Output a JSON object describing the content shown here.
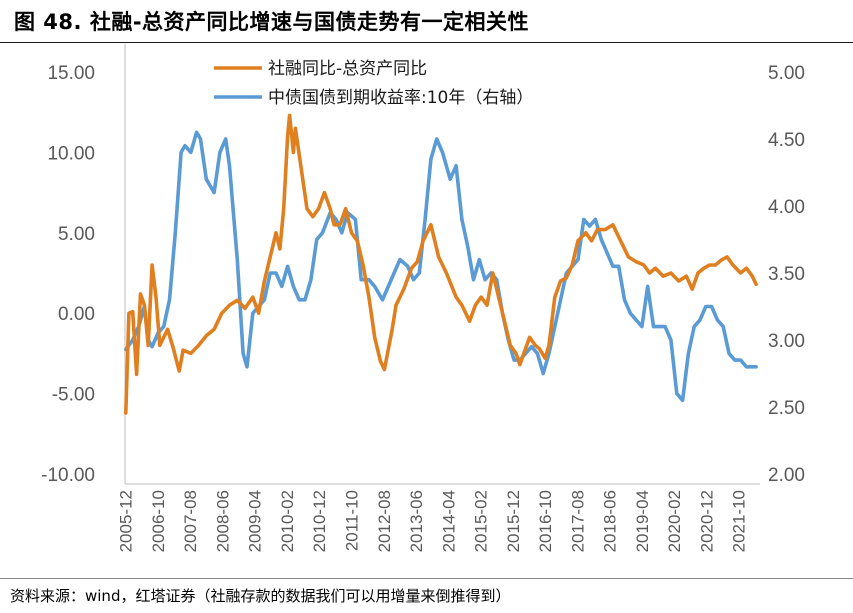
{
  "title": "图 48. 社融-总资产同比增速与国债走势有一定相关性",
  "source": "资料来源：wind，红塔证券（社融存款的数据我们可以用增量来倒推得到）",
  "colors": {
    "series_1": "#E07F1F",
    "series_2": "#5A9BD5"
  },
  "chart_data": {
    "type": "line",
    "x": [
      "2005-12",
      "2006-10",
      "2007-08",
      "2008-06",
      "2009-04",
      "2010-02",
      "2010-12",
      "2011-10",
      "2012-08",
      "2013-06",
      "2014-04",
      "2015-02",
      "2015-12",
      "2016-10",
      "2017-08",
      "2018-06",
      "2019-04",
      "2020-02",
      "2020-12",
      "2021-10"
    ],
    "x_range": [
      2005.9,
      2022.3
    ],
    "y_left": {
      "range": [
        -10,
        15
      ],
      "ticks": [
        "15.00",
        "10.00",
        "5.00",
        "0.00",
        "-5.00",
        "-10.00"
      ]
    },
    "y_right": {
      "range": [
        2,
        5
      ],
      "ticks": [
        "5.00",
        "4.50",
        "4.00",
        "3.50",
        "3.00",
        "2.50",
        "2.00"
      ]
    },
    "legend": {
      "position": "top-center"
    },
    "series": [
      {
        "name": "社融同比-总资产同比",
        "axis": "left",
        "points": [
          [
            2005.92,
            -6.2
          ],
          [
            2006.0,
            0
          ],
          [
            2006.1,
            0.1
          ],
          [
            2006.2,
            -3.8
          ],
          [
            2006.3,
            1.2
          ],
          [
            2006.4,
            0.5
          ],
          [
            2006.5,
            -2.0
          ],
          [
            2006.6,
            3.0
          ],
          [
            2006.7,
            1.0
          ],
          [
            2006.8,
            -2.0
          ],
          [
            2007.0,
            -1.0
          ],
          [
            2007.15,
            -2.2
          ],
          [
            2007.3,
            -3.6
          ],
          [
            2007.4,
            -2.3
          ],
          [
            2007.6,
            -2.5
          ],
          [
            2007.8,
            -2.0
          ],
          [
            2008.0,
            -1.4
          ],
          [
            2008.2,
            -1.0
          ],
          [
            2008.4,
            0.0
          ],
          [
            2008.6,
            0.5
          ],
          [
            2008.8,
            0.8
          ],
          [
            2009.0,
            0.3
          ],
          [
            2009.2,
            1.0
          ],
          [
            2009.35,
            0.0
          ],
          [
            2009.5,
            2.0
          ],
          [
            2009.65,
            3.5
          ],
          [
            2009.8,
            5.0
          ],
          [
            2009.9,
            4.0
          ],
          [
            2010.0,
            6.5
          ],
          [
            2010.1,
            11.0
          ],
          [
            2010.15,
            12.3
          ],
          [
            2010.25,
            10.0
          ],
          [
            2010.3,
            11.5
          ],
          [
            2010.45,
            9.0
          ],
          [
            2010.6,
            6.5
          ],
          [
            2010.75,
            6.0
          ],
          [
            2010.9,
            6.5
          ],
          [
            2011.05,
            7.5
          ],
          [
            2011.2,
            6.5
          ],
          [
            2011.3,
            5.5
          ],
          [
            2011.45,
            5.5
          ],
          [
            2011.6,
            6.5
          ],
          [
            2011.75,
            5.0
          ],
          [
            2011.9,
            4.5
          ],
          [
            2012.05,
            3.0
          ],
          [
            2012.2,
            1.0
          ],
          [
            2012.35,
            -1.5
          ],
          [
            2012.5,
            -3.0
          ],
          [
            2012.6,
            -3.5
          ],
          [
            2012.8,
            -1.0
          ],
          [
            2012.9,
            0.5
          ],
          [
            2013.1,
            1.5
          ],
          [
            2013.3,
            2.8
          ],
          [
            2013.45,
            3.2
          ],
          [
            2013.6,
            4.5
          ],
          [
            2013.8,
            5.5
          ],
          [
            2014.0,
            3.5
          ],
          [
            2014.2,
            2.5
          ],
          [
            2014.45,
            1.0
          ],
          [
            2014.6,
            0.5
          ],
          [
            2014.8,
            -0.5
          ],
          [
            2014.95,
            0.5
          ],
          [
            2015.1,
            1.0
          ],
          [
            2015.25,
            0.5
          ],
          [
            2015.4,
            2.5
          ],
          [
            2015.55,
            1.0
          ],
          [
            2015.7,
            -0.5
          ],
          [
            2015.85,
            -2.0
          ],
          [
            2016.0,
            -2.5
          ],
          [
            2016.1,
            -3.2
          ],
          [
            2016.2,
            -2.5
          ],
          [
            2016.35,
            -1.5
          ],
          [
            2016.5,
            -2.0
          ],
          [
            2016.6,
            -2.2
          ],
          [
            2016.75,
            -2.8
          ],
          [
            2016.85,
            -2.0
          ],
          [
            2017.0,
            1.0
          ],
          [
            2017.15,
            2.0
          ],
          [
            2017.3,
            2.2
          ],
          [
            2017.45,
            3.0
          ],
          [
            2017.6,
            4.5
          ],
          [
            2017.8,
            5.0
          ],
          [
            2017.95,
            4.5
          ],
          [
            2018.1,
            5.2
          ],
          [
            2018.3,
            5.2
          ],
          [
            2018.5,
            5.5
          ],
          [
            2018.7,
            4.5
          ],
          [
            2018.9,
            3.5
          ],
          [
            2019.1,
            3.2
          ],
          [
            2019.3,
            3.0
          ],
          [
            2019.45,
            2.5
          ],
          [
            2019.6,
            2.8
          ],
          [
            2019.8,
            2.3
          ],
          [
            2020.0,
            2.5
          ],
          [
            2020.2,
            2.0
          ],
          [
            2020.4,
            2.3
          ],
          [
            2020.55,
            1.5
          ],
          [
            2020.7,
            2.5
          ],
          [
            2020.85,
            2.8
          ],
          [
            2021.0,
            3.0
          ],
          [
            2021.15,
            3.0
          ],
          [
            2021.3,
            3.3
          ],
          [
            2021.45,
            3.5
          ],
          [
            2021.6,
            3.0
          ],
          [
            2021.8,
            2.5
          ],
          [
            2021.95,
            2.8
          ],
          [
            2022.1,
            2.3
          ],
          [
            2022.2,
            1.8
          ]
        ]
      },
      {
        "name": "中债国债到期收益率:10年（右轴）",
        "axis": "right",
        "points": [
          [
            2005.92,
            2.93
          ],
          [
            2006.1,
            3.0
          ],
          [
            2006.25,
            3.1
          ],
          [
            2006.4,
            3.25
          ],
          [
            2006.5,
            3.0
          ],
          [
            2006.6,
            2.95
          ],
          [
            2006.75,
            3.05
          ],
          [
            2006.9,
            3.1
          ],
          [
            2007.05,
            3.3
          ],
          [
            2007.2,
            3.8
          ],
          [
            2007.35,
            4.4
          ],
          [
            2007.45,
            4.45
          ],
          [
            2007.6,
            4.4
          ],
          [
            2007.75,
            4.55
          ],
          [
            2007.85,
            4.5
          ],
          [
            2008.0,
            4.2
          ],
          [
            2008.2,
            4.1
          ],
          [
            2008.35,
            4.4
          ],
          [
            2008.5,
            4.5
          ],
          [
            2008.6,
            4.3
          ],
          [
            2008.8,
            3.6
          ],
          [
            2008.95,
            2.9
          ],
          [
            2009.05,
            2.8
          ],
          [
            2009.2,
            3.2
          ],
          [
            2009.35,
            3.25
          ],
          [
            2009.5,
            3.3
          ],
          [
            2009.65,
            3.5
          ],
          [
            2009.8,
            3.5
          ],
          [
            2009.95,
            3.4
          ],
          [
            2010.1,
            3.55
          ],
          [
            2010.25,
            3.4
          ],
          [
            2010.4,
            3.3
          ],
          [
            2010.55,
            3.3
          ],
          [
            2010.7,
            3.45
          ],
          [
            2010.85,
            3.75
          ],
          [
            2011.0,
            3.8
          ],
          [
            2011.2,
            3.95
          ],
          [
            2011.35,
            3.9
          ],
          [
            2011.5,
            3.8
          ],
          [
            2011.65,
            3.95
          ],
          [
            2011.85,
            3.9
          ],
          [
            2012.0,
            3.45
          ],
          [
            2012.2,
            3.45
          ],
          [
            2012.35,
            3.4
          ],
          [
            2012.55,
            3.3
          ],
          [
            2012.7,
            3.4
          ],
          [
            2012.85,
            3.5
          ],
          [
            2013.0,
            3.6
          ],
          [
            2013.2,
            3.55
          ],
          [
            2013.35,
            3.45
          ],
          [
            2013.5,
            3.5
          ],
          [
            2013.65,
            3.9
          ],
          [
            2013.8,
            4.35
          ],
          [
            2013.95,
            4.5
          ],
          [
            2014.1,
            4.4
          ],
          [
            2014.3,
            4.2
          ],
          [
            2014.45,
            4.3
          ],
          [
            2014.6,
            3.9
          ],
          [
            2014.75,
            3.7
          ],
          [
            2014.9,
            3.45
          ],
          [
            2015.05,
            3.6
          ],
          [
            2015.2,
            3.45
          ],
          [
            2015.35,
            3.5
          ],
          [
            2015.5,
            3.45
          ],
          [
            2015.65,
            3.2
          ],
          [
            2015.8,
            3.0
          ],
          [
            2015.95,
            2.85
          ],
          [
            2016.1,
            2.85
          ],
          [
            2016.25,
            2.9
          ],
          [
            2016.4,
            2.95
          ],
          [
            2016.55,
            2.9
          ],
          [
            2016.7,
            2.75
          ],
          [
            2016.85,
            2.9
          ],
          [
            2017.0,
            3.1
          ],
          [
            2017.15,
            3.3
          ],
          [
            2017.3,
            3.5
          ],
          [
            2017.45,
            3.55
          ],
          [
            2017.6,
            3.6
          ],
          [
            2017.75,
            3.9
          ],
          [
            2017.9,
            3.85
          ],
          [
            2018.05,
            3.9
          ],
          [
            2018.2,
            3.75
          ],
          [
            2018.35,
            3.65
          ],
          [
            2018.5,
            3.55
          ],
          [
            2018.65,
            3.55
          ],
          [
            2018.8,
            3.3
          ],
          [
            2018.95,
            3.2
          ],
          [
            2019.1,
            3.15
          ],
          [
            2019.25,
            3.1
          ],
          [
            2019.4,
            3.4
          ],
          [
            2019.55,
            3.1
          ],
          [
            2019.7,
            3.1
          ],
          [
            2019.85,
            3.1
          ],
          [
            2020.0,
            3.0
          ],
          [
            2020.15,
            2.6
          ],
          [
            2020.3,
            2.55
          ],
          [
            2020.45,
            2.9
          ],
          [
            2020.6,
            3.1
          ],
          [
            2020.75,
            3.15
          ],
          [
            2020.9,
            3.25
          ],
          [
            2021.05,
            3.25
          ],
          [
            2021.2,
            3.15
          ],
          [
            2021.35,
            3.1
          ],
          [
            2021.5,
            2.9
          ],
          [
            2021.65,
            2.85
          ],
          [
            2021.8,
            2.85
          ],
          [
            2021.95,
            2.8
          ],
          [
            2022.1,
            2.8
          ],
          [
            2022.2,
            2.8
          ]
        ]
      }
    ]
  }
}
